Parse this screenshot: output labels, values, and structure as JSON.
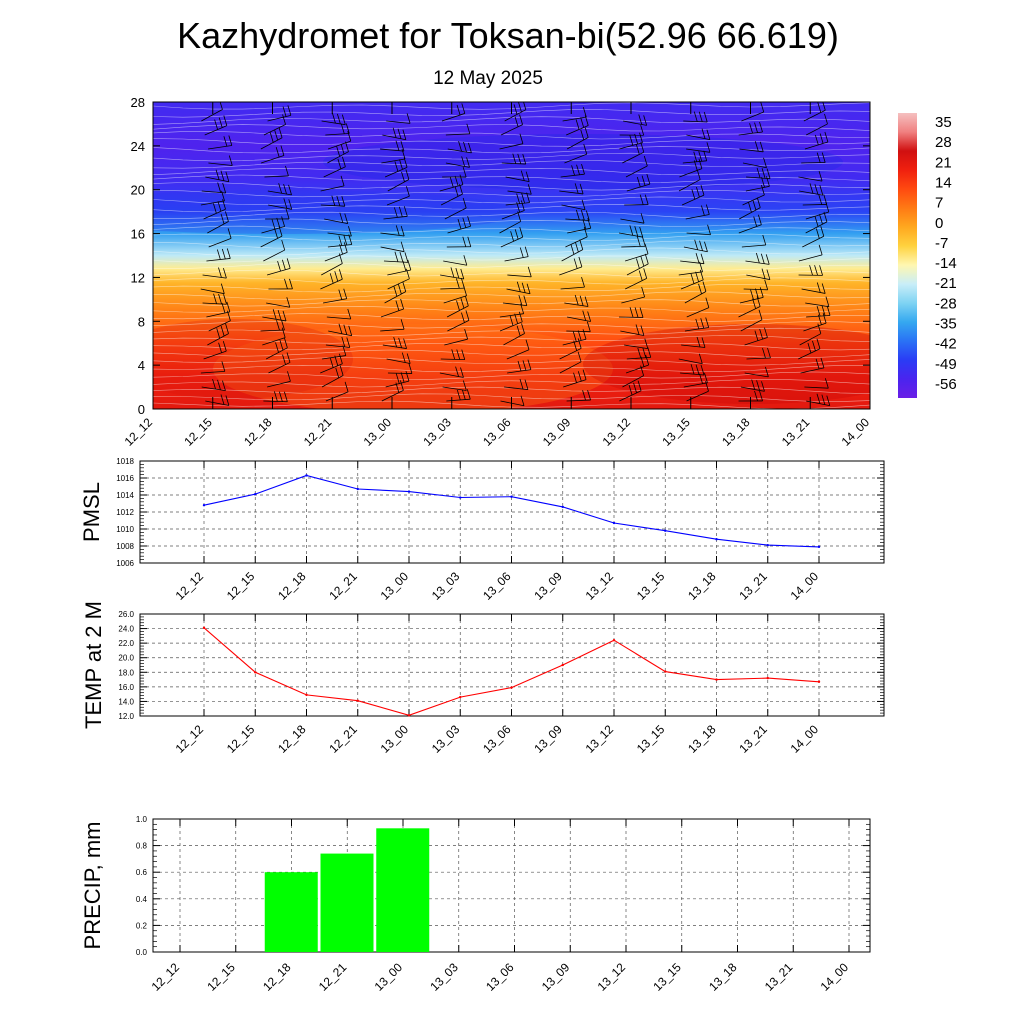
{
  "page": {
    "title": "Kazhydromet for Toksan-bi(52.96 66.619)",
    "subtitle": "12 May 2025"
  },
  "chart_data": [
    {
      "type": "heatmap",
      "id": "cross-section",
      "times": [
        "12_12",
        "12_15",
        "12_18",
        "12_21",
        "13_00",
        "13_03",
        "13_06",
        "13_09",
        "13_12",
        "13_15",
        "13_18",
        "13_21",
        "14_00"
      ],
      "y_ticks": [
        0,
        4,
        8,
        12,
        16,
        20,
        24,
        28
      ],
      "ylim": [
        0,
        28
      ],
      "colorbar": {
        "labels": [
          "35",
          "28",
          "21",
          "14",
          "7",
          "0",
          "-7",
          "-14",
          "-21",
          "-28",
          "-35",
          "-42",
          "-49",
          "-56"
        ],
        "range": [
          -63,
          42
        ],
        "colors": [
          "#6a1fe6",
          "#4a24ef",
          "#2a3cf5",
          "#2a72f5",
          "#35a8f0",
          "#7fd3f3",
          "#c9eef8",
          "#fff7b0",
          "#ffd23f",
          "#ffa81f",
          "#ff7a14",
          "#ff4a10",
          "#f0200f",
          "#d01010",
          "#f08080",
          "#f5c0c0"
        ]
      },
      "vertical_profile": [
        {
          "level": 0,
          "value": 24
        },
        {
          "level": 3,
          "value": 21
        },
        {
          "level": 6,
          "value": 14
        },
        {
          "level": 9,
          "value": 6
        },
        {
          "level": 11.5,
          "value": -2
        },
        {
          "level": 12.8,
          "value": -12
        },
        {
          "level": 14,
          "value": -22
        },
        {
          "level": 16,
          "value": -36
        },
        {
          "level": 18,
          "value": -48
        },
        {
          "level": 21,
          "value": -54
        },
        {
          "level": 24,
          "value": -57
        },
        {
          "level": 28,
          "value": -54
        }
      ]
    },
    {
      "type": "line",
      "id": "pmsl",
      "ylabel": "PMSL",
      "x": [
        "12_12",
        "12_15",
        "12_18",
        "12_21",
        "13_00",
        "13_03",
        "13_06",
        "13_09",
        "13_12",
        "13_15",
        "13_18",
        "13_21",
        "14_00"
      ],
      "values": [
        1012.8,
        1014.1,
        1016.3,
        1014.7,
        1014.4,
        1013.7,
        1013.8,
        1012.6,
        1010.7,
        1009.8,
        1008.8,
        1008.1,
        1007.9
      ],
      "y_ticks": [
        "1006",
        "1008",
        "1010",
        "1012",
        "1014",
        "1016",
        "1018"
      ],
      "ylim": [
        1006,
        1018
      ],
      "color": "#0000ff"
    },
    {
      "type": "line",
      "id": "temp2m",
      "ylabel": "TEMP at 2 M",
      "x": [
        "12_12",
        "12_15",
        "12_18",
        "12_21",
        "13_00",
        "13_03",
        "13_06",
        "13_09",
        "13_12",
        "13_15",
        "13_18",
        "13_21",
        "14_00"
      ],
      "values": [
        24.1,
        18.0,
        14.9,
        14.1,
        12.1,
        14.6,
        15.9,
        19.0,
        22.4,
        18.1,
        17.0,
        17.2,
        16.7
      ],
      "y_ticks": [
        "12.0",
        "14.0",
        "16.0",
        "18.0",
        "20.0",
        "22.0",
        "24.0",
        "26.0"
      ],
      "ylim": [
        12,
        26
      ],
      "color": "#ff0000"
    },
    {
      "type": "bar",
      "id": "precip",
      "ylabel": "PRECIP, mm",
      "categories": [
        "12_12",
        "12_15",
        "12_18",
        "12_21",
        "13_00",
        "13_03",
        "13_06",
        "13_09",
        "13_12",
        "13_15",
        "13_18",
        "13_21",
        "14_00"
      ],
      "values": [
        0,
        0.6,
        0.74,
        0.93,
        0,
        0,
        0,
        0,
        0,
        0,
        0,
        0,
        0
      ],
      "y_ticks": [
        "0.0",
        "0.2",
        "0.4",
        "0.6",
        "0.8",
        "1.0"
      ],
      "ylim": [
        0,
        1
      ],
      "color": "#00ff00"
    }
  ]
}
